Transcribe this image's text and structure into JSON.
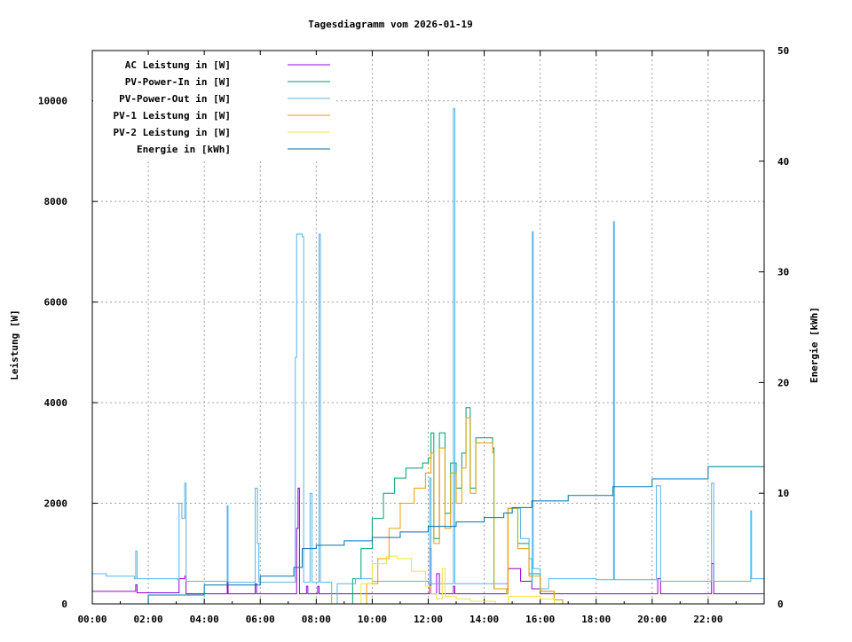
{
  "chart_data": {
    "type": "line",
    "title": "Tagesdiagramm vom 2026-01-19",
    "xlabel": "",
    "ylabel": "Leistung [W]",
    "y2label": "Energie [kWh]",
    "xlim": [
      0,
      24
    ],
    "ylim": [
      0,
      11000
    ],
    "y2lim": [
      0,
      50
    ],
    "grid": true,
    "legend_placement": "top-left",
    "x_ticks": [
      {
        "v": 0,
        "label": "00:00"
      },
      {
        "v": 2,
        "label": "02:00"
      },
      {
        "v": 4,
        "label": "04:00"
      },
      {
        "v": 6,
        "label": "06:00"
      },
      {
        "v": 8,
        "label": "08:00"
      },
      {
        "v": 10,
        "label": "10:00"
      },
      {
        "v": 12,
        "label": "12:00"
      },
      {
        "v": 14,
        "label": "14:00"
      },
      {
        "v": 16,
        "label": "16:00"
      },
      {
        "v": 18,
        "label": "18:00"
      },
      {
        "v": 20,
        "label": "20:00"
      },
      {
        "v": 22,
        "label": "22:00"
      }
    ],
    "y_ticks": [
      {
        "v": 0,
        "label": "0"
      },
      {
        "v": 2000,
        "label": "2000"
      },
      {
        "v": 4000,
        "label": "4000"
      },
      {
        "v": 6000,
        "label": "6000"
      },
      {
        "v": 8000,
        "label": "8000"
      },
      {
        "v": 10000,
        "label": "10000"
      }
    ],
    "y2_ticks": [
      {
        "v": 0,
        "label": "0"
      },
      {
        "v": 10,
        "label": "10"
      },
      {
        "v": 20,
        "label": "20"
      },
      {
        "v": 30,
        "label": "30"
      },
      {
        "v": 40,
        "label": "40"
      },
      {
        "v": 50,
        "label": "50"
      }
    ],
    "series": [
      {
        "name": "AC Leistung in [W]",
        "color": "#9400d3",
        "axis": "y1",
        "points": [
          [
            0,
            250
          ],
          [
            1.5,
            250
          ],
          [
            1.55,
            380
          ],
          [
            1.6,
            220
          ],
          [
            3.05,
            220
          ],
          [
            3.1,
            500
          ],
          [
            3.3,
            550
          ],
          [
            3.35,
            200
          ],
          [
            4.8,
            200
          ],
          [
            4.82,
            450
          ],
          [
            4.85,
            200
          ],
          [
            5.8,
            200
          ],
          [
            5.82,
            400
          ],
          [
            5.87,
            200
          ],
          [
            7.2,
            200
          ],
          [
            7.3,
            1500
          ],
          [
            7.35,
            2300
          ],
          [
            7.4,
            200
          ],
          [
            7.6,
            200
          ],
          [
            7.65,
            350
          ],
          [
            7.7,
            200
          ],
          [
            8.0,
            200
          ],
          [
            8.05,
            350
          ],
          [
            8.1,
            200
          ],
          [
            11.9,
            200
          ],
          [
            12.05,
            1100
          ],
          [
            12.1,
            200
          ],
          [
            12.3,
            600
          ],
          [
            12.4,
            200
          ],
          [
            12.9,
            350
          ],
          [
            12.95,
            200
          ],
          [
            14.8,
            200
          ],
          [
            14.85,
            700
          ],
          [
            15.3,
            450
          ],
          [
            15.7,
            300
          ],
          [
            16,
            200
          ],
          [
            20.1,
            200
          ],
          [
            20.2,
            500
          ],
          [
            20.3,
            200
          ],
          [
            22.1,
            200
          ],
          [
            22.12,
            800
          ],
          [
            22.2,
            200
          ],
          [
            24,
            220
          ]
        ]
      },
      {
        "name": "PV-Power-In in [W]",
        "color": "#009e73",
        "axis": "y1",
        "points": [
          [
            0,
            0
          ],
          [
            9.0,
            0
          ],
          [
            9.3,
            500
          ],
          [
            9.6,
            1100
          ],
          [
            10.0,
            1700
          ],
          [
            10.4,
            2200
          ],
          [
            10.8,
            2500
          ],
          [
            11.2,
            2700
          ],
          [
            11.8,
            2800
          ],
          [
            12.0,
            2900
          ],
          [
            12.1,
            3400
          ],
          [
            12.2,
            1300
          ],
          [
            12.4,
            3400
          ],
          [
            12.6,
            1800
          ],
          [
            12.8,
            2800
          ],
          [
            13.0,
            2300
          ],
          [
            13.2,
            3000
          ],
          [
            13.35,
            3900
          ],
          [
            13.5,
            2300
          ],
          [
            13.7,
            3300
          ],
          [
            14.0,
            3300
          ],
          [
            14.3,
            3100
          ],
          [
            14.35,
            300
          ],
          [
            14.8,
            300
          ],
          [
            14.85,
            1900
          ],
          [
            15.2,
            1200
          ],
          [
            15.6,
            600
          ],
          [
            16.0,
            250
          ],
          [
            16.5,
            80
          ],
          [
            16.8,
            0
          ],
          [
            24,
            0
          ]
        ]
      },
      {
        "name": "PV-Power-Out in [W]",
        "color": "#56b4e9",
        "axis": "y1",
        "points": [
          [
            0,
            600
          ],
          [
            0.5,
            550
          ],
          [
            1.5,
            500
          ],
          [
            1.55,
            1050
          ],
          [
            1.6,
            500
          ],
          [
            3.05,
            480
          ],
          [
            3.1,
            2000
          ],
          [
            3.2,
            1700
          ],
          [
            3.3,
            2400
          ],
          [
            3.35,
            450
          ],
          [
            4.8,
            450
          ],
          [
            4.82,
            1950
          ],
          [
            4.85,
            430
          ],
          [
            5.8,
            430
          ],
          [
            5.82,
            2300
          ],
          [
            5.9,
            1200
          ],
          [
            5.95,
            430
          ],
          [
            7.2,
            430
          ],
          [
            7.25,
            4900
          ],
          [
            7.3,
            7350
          ],
          [
            7.5,
            7300
          ],
          [
            7.55,
            430
          ],
          [
            7.75,
            430
          ],
          [
            7.78,
            2200
          ],
          [
            7.85,
            430
          ],
          [
            8.05,
            430
          ],
          [
            8.1,
            7350
          ],
          [
            8.15,
            430
          ],
          [
            8.5,
            430
          ],
          [
            8.55,
            0
          ],
          [
            8.7,
            0
          ],
          [
            8.75,
            400
          ],
          [
            9.3,
            400
          ],
          [
            9.4,
            500
          ],
          [
            10,
            450
          ],
          [
            12,
            400
          ],
          [
            12.05,
            2500
          ],
          [
            12.1,
            400
          ],
          [
            12.85,
            400
          ],
          [
            12.9,
            9850
          ],
          [
            12.95,
            400
          ],
          [
            14.8,
            400
          ],
          [
            14.85,
            1900
          ],
          [
            15.3,
            1300
          ],
          [
            15.6,
            900
          ],
          [
            15.7,
            400
          ],
          [
            15.72,
            7400
          ],
          [
            15.75,
            700
          ],
          [
            16.0,
            300
          ],
          [
            16.3,
            500
          ],
          [
            18.0,
            480
          ],
          [
            18.6,
            480
          ],
          [
            18.62,
            7600
          ],
          [
            18.65,
            480
          ],
          [
            20.1,
            480
          ],
          [
            20.15,
            2350
          ],
          [
            20.3,
            450
          ],
          [
            22.1,
            450
          ],
          [
            22.12,
            2400
          ],
          [
            22.2,
            450
          ],
          [
            23.5,
            450
          ],
          [
            23.52,
            1850
          ],
          [
            23.55,
            500
          ],
          [
            24,
            500
          ]
        ]
      },
      {
        "name": "PV-1 Leistung in [W]",
        "color": "#e69f00",
        "axis": "y1",
        "points": [
          [
            0,
            0
          ],
          [
            9.5,
            0
          ],
          [
            9.8,
            400
          ],
          [
            10.2,
            900
          ],
          [
            10.6,
            1500
          ],
          [
            11.0,
            2000
          ],
          [
            11.5,
            2300
          ],
          [
            11.9,
            2600
          ],
          [
            12.1,
            3000
          ],
          [
            12.2,
            1200
          ],
          [
            12.4,
            3100
          ],
          [
            12.6,
            1500
          ],
          [
            12.8,
            2600
          ],
          [
            13.0,
            2000
          ],
          [
            13.2,
            2700
          ],
          [
            13.35,
            3700
          ],
          [
            13.5,
            2200
          ],
          [
            13.7,
            3200
          ],
          [
            14.0,
            3200
          ],
          [
            14.3,
            3000
          ],
          [
            14.35,
            300
          ],
          [
            14.8,
            200
          ],
          [
            14.85,
            1900
          ],
          [
            15.2,
            1100
          ],
          [
            15.6,
            550
          ],
          [
            16.0,
            250
          ],
          [
            16.5,
            80
          ],
          [
            16.8,
            0
          ],
          [
            24,
            0
          ]
        ]
      },
      {
        "name": "PV-2 Leistung in [W]",
        "color": "#f0e442",
        "axis": "y1",
        "points": [
          [
            0,
            0
          ],
          [
            9.3,
            0
          ],
          [
            9.6,
            400
          ],
          [
            10.0,
            800
          ],
          [
            10.5,
            950
          ],
          [
            10.9,
            900
          ],
          [
            11.4,
            650
          ],
          [
            11.9,
            350
          ],
          [
            12.1,
            200
          ],
          [
            12.3,
            100
          ],
          [
            12.5,
            700
          ],
          [
            12.6,
            150
          ],
          [
            13.0,
            100
          ],
          [
            13.5,
            50
          ],
          [
            14.4,
            0
          ],
          [
            14.85,
            150
          ],
          [
            16.0,
            100
          ],
          [
            16.5,
            0
          ],
          [
            24,
            0
          ]
        ]
      },
      {
        "name": "Energie in [kWh]",
        "color": "#0072b2",
        "axis": "y2",
        "points": [
          [
            0,
            0
          ],
          [
            2,
            0.8
          ],
          [
            4,
            1.7
          ],
          [
            6,
            2.5
          ],
          [
            7.2,
            3.3
          ],
          [
            7.5,
            5.0
          ],
          [
            8,
            5.3
          ],
          [
            9,
            5.7
          ],
          [
            10,
            6.0
          ],
          [
            11,
            6.5
          ],
          [
            12,
            7.0
          ],
          [
            13,
            7.4
          ],
          [
            14,
            7.8
          ],
          [
            14.7,
            8.2
          ],
          [
            15,
            8.7
          ],
          [
            15.7,
            9.3
          ],
          [
            17,
            9.8
          ],
          [
            18.6,
            10.6
          ],
          [
            20,
            11.3
          ],
          [
            22,
            12.4
          ],
          [
            24,
            13.5
          ]
        ]
      }
    ]
  }
}
